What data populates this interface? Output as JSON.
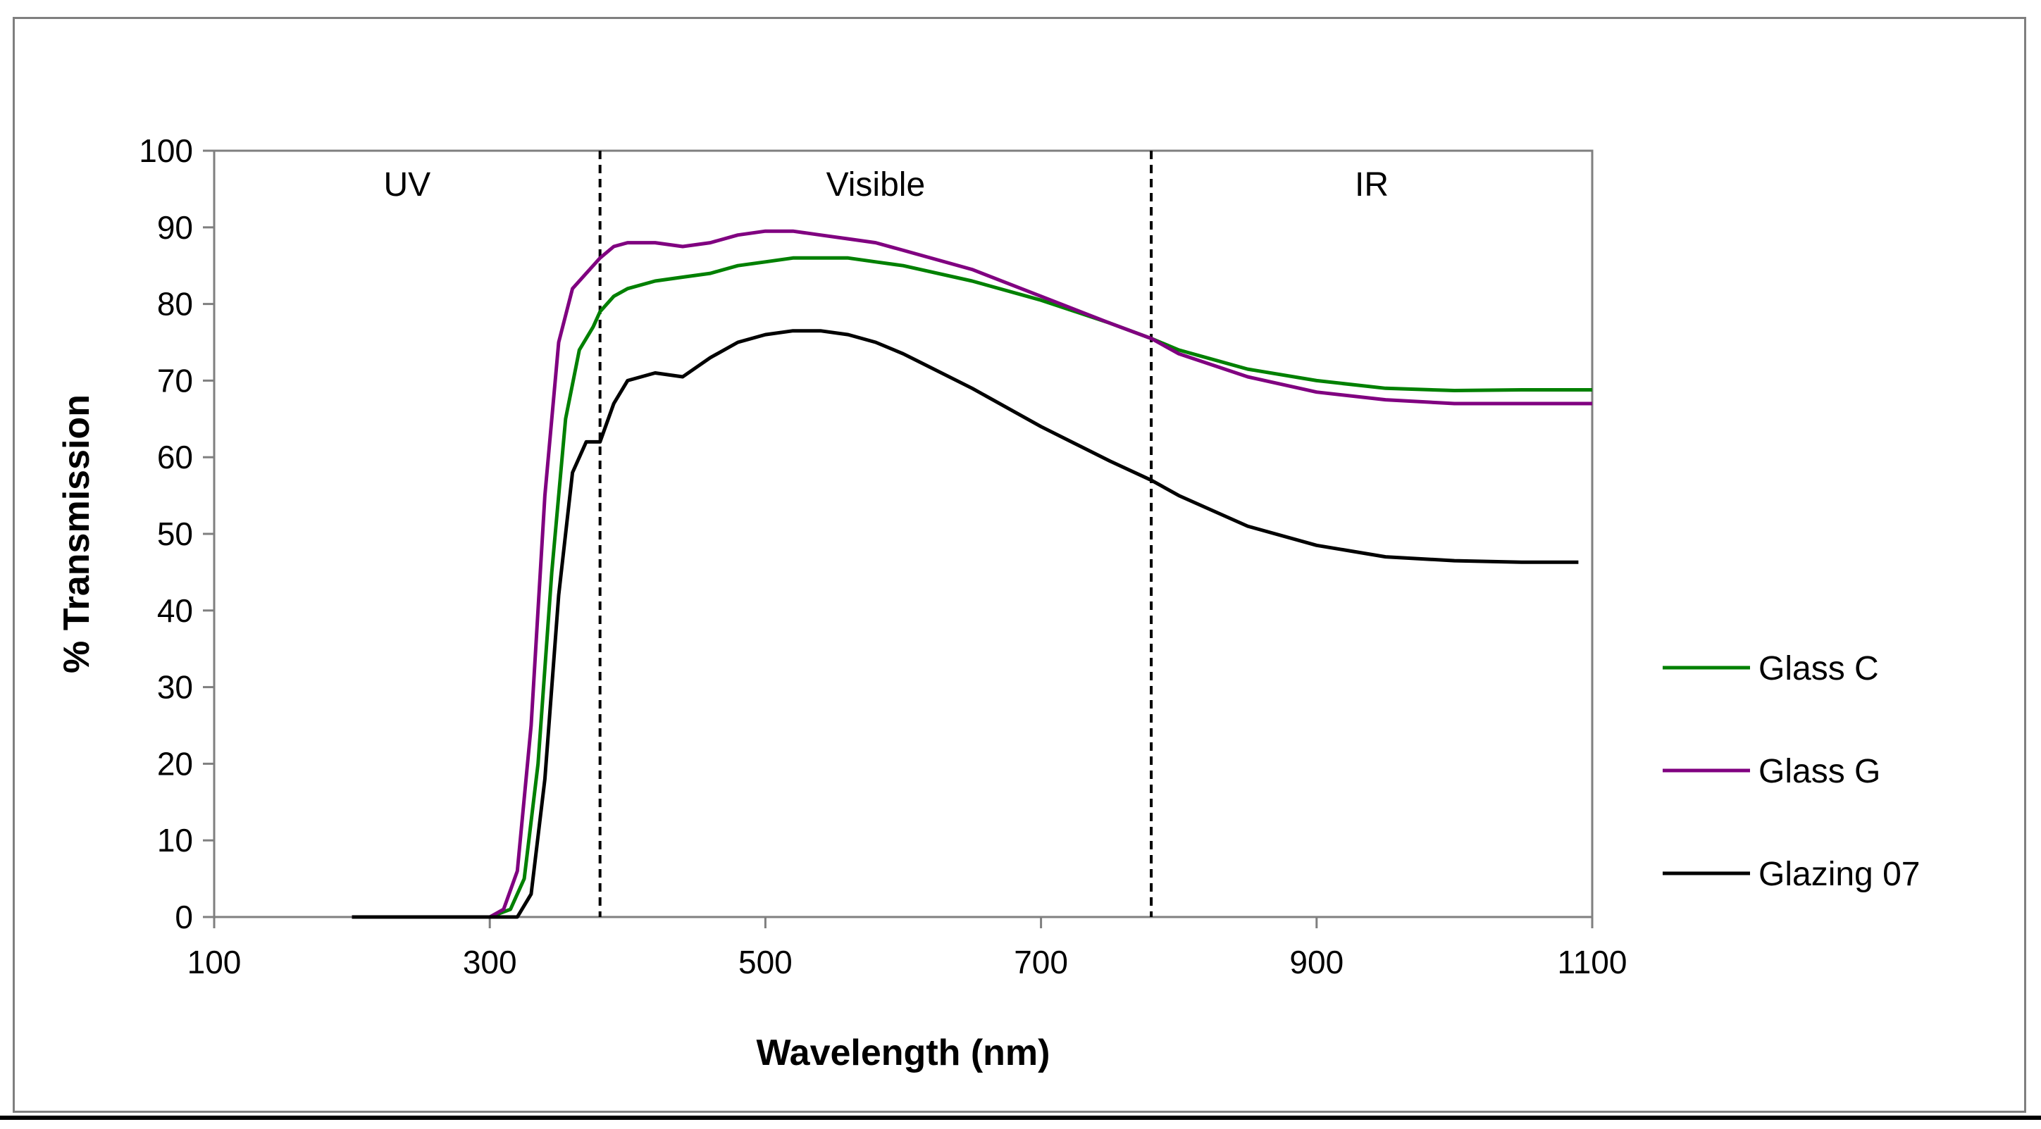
{
  "chart_data": {
    "type": "line",
    "title": "",
    "xlabel": "Wavelength (nm)",
    "ylabel": "% Transmission",
    "xlim": [
      100,
      1100
    ],
    "ylim": [
      0,
      100
    ],
    "xticks": [
      100,
      300,
      500,
      700,
      900,
      1100
    ],
    "yticks": [
      0,
      10,
      20,
      30,
      40,
      50,
      60,
      70,
      80,
      90,
      100
    ],
    "grid": false,
    "legend_position": "right",
    "regions": [
      {
        "label": "UV",
        "x_center": 240
      },
      {
        "label": "Visible",
        "x_center": 580
      },
      {
        "label": "IR",
        "x_center": 940
      }
    ],
    "region_boundaries": [
      380,
      780
    ],
    "series": [
      {
        "name": "Glass C",
        "color": "#008000",
        "x": [
          200,
          300,
          315,
          325,
          335,
          345,
          355,
          365,
          375,
          380,
          390,
          400,
          420,
          440,
          460,
          480,
          500,
          520,
          540,
          560,
          580,
          600,
          650,
          700,
          750,
          780,
          800,
          850,
          900,
          950,
          1000,
          1050,
          1100
        ],
        "y": [
          0,
          0,
          1,
          5,
          20,
          45,
          65,
          74,
          77,
          79,
          81,
          82,
          83,
          83.5,
          84,
          85,
          85.5,
          86,
          86,
          86,
          85.5,
          85,
          83,
          80.5,
          77.5,
          75.5,
          74,
          71.5,
          70,
          69,
          68.7,
          68.8,
          68.8
        ]
      },
      {
        "name": "Glass G",
        "color": "#800080",
        "x": [
          200,
          300,
          310,
          320,
          330,
          340,
          350,
          360,
          370,
          380,
          390,
          400,
          420,
          440,
          460,
          480,
          500,
          520,
          540,
          560,
          580,
          600,
          650,
          700,
          750,
          780,
          800,
          850,
          900,
          950,
          1000,
          1050,
          1100
        ],
        "y": [
          0,
          0,
          1,
          6,
          25,
          55,
          75,
          82,
          84,
          86,
          87.5,
          88,
          88,
          87.5,
          88,
          89,
          89.5,
          89.5,
          89,
          88.5,
          88,
          87,
          84.5,
          81,
          77.5,
          75.5,
          73.5,
          70.5,
          68.5,
          67.5,
          67,
          67,
          67
        ]
      },
      {
        "name": "Glazing 07",
        "color": "#000000",
        "x": [
          200,
          300,
          320,
          330,
          340,
          350,
          360,
          370,
          380,
          390,
          400,
          420,
          440,
          460,
          480,
          500,
          520,
          540,
          560,
          580,
          600,
          650,
          700,
          750,
          780,
          800,
          850,
          900,
          950,
          1000,
          1050,
          1090
        ],
        "y": [
          0,
          0,
          0,
          3,
          18,
          42,
          58,
          62,
          62,
          67,
          70,
          71,
          70.5,
          73,
          75,
          76,
          76.5,
          76.5,
          76,
          75,
          73.5,
          69,
          64,
          59.5,
          57,
          55,
          51,
          48.5,
          47,
          46.5,
          46.3,
          46.3
        ]
      }
    ]
  }
}
